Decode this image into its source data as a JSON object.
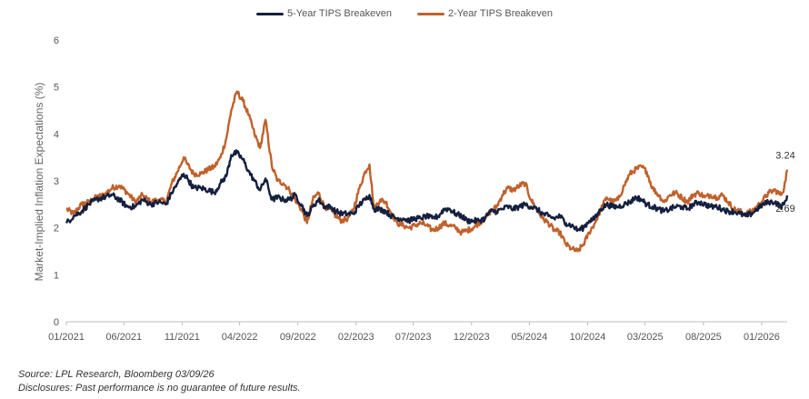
{
  "chart_data": {
    "type": "line",
    "ylabel": "Market-Implied Inflation Expectations (%)",
    "ylim": [
      0,
      6
    ],
    "yticks": [
      "0",
      "1",
      "2",
      "3",
      "4",
      "5",
      "6"
    ],
    "xlim": [
      "2021-01-01",
      "2026-03-09"
    ],
    "xticks": [
      {
        "date": "2021-01-01",
        "label": "01/2021"
      },
      {
        "date": "2021-06-01",
        "label": "06/2021"
      },
      {
        "date": "2021-11-01",
        "label": "11/2021"
      },
      {
        "date": "2022-04-01",
        "label": "04/2022"
      },
      {
        "date": "2022-09-01",
        "label": "09/2022"
      },
      {
        "date": "2023-02-01",
        "label": "02/2023"
      },
      {
        "date": "2023-07-01",
        "label": "07/2023"
      },
      {
        "date": "2023-12-01",
        "label": "12/2023"
      },
      {
        "date": "2024-05-01",
        "label": "05/2024"
      },
      {
        "date": "2024-10-01",
        "label": "10/2024"
      },
      {
        "date": "2025-03-01",
        "label": "03/2025"
      },
      {
        "date": "2025-08-01",
        "label": "08/2025"
      },
      {
        "date": "2026-01-01",
        "label": "01/2026"
      }
    ],
    "grid": false,
    "legend_position": "top-center",
    "series": [
      {
        "name": "5-Year TIPS Breakeven",
        "color": "#15203f",
        "end_label": "2.69",
        "points": [
          [
            "2021-01-01",
            2.1
          ],
          [
            "2021-01-20",
            2.25
          ],
          [
            "2021-02-10",
            2.35
          ],
          [
            "2021-03-01",
            2.5
          ],
          [
            "2021-03-20",
            2.6
          ],
          [
            "2021-04-10",
            2.65
          ],
          [
            "2021-05-01",
            2.7
          ],
          [
            "2021-05-20",
            2.6
          ],
          [
            "2021-06-10",
            2.45
          ],
          [
            "2021-07-01",
            2.45
          ],
          [
            "2021-07-20",
            2.6
          ],
          [
            "2021-08-10",
            2.5
          ],
          [
            "2021-09-01",
            2.55
          ],
          [
            "2021-09-20",
            2.5
          ],
          [
            "2021-10-05",
            2.75
          ],
          [
            "2021-10-20",
            2.95
          ],
          [
            "2021-11-05",
            3.15
          ],
          [
            "2021-11-15",
            3.05
          ],
          [
            "2021-12-01",
            2.85
          ],
          [
            "2021-12-20",
            2.85
          ],
          [
            "2022-01-10",
            2.8
          ],
          [
            "2022-01-25",
            2.75
          ],
          [
            "2022-02-10",
            2.95
          ],
          [
            "2022-02-25",
            3.1
          ],
          [
            "2022-03-10",
            3.55
          ],
          [
            "2022-03-25",
            3.6
          ],
          [
            "2022-04-10",
            3.45
          ],
          [
            "2022-04-25",
            3.2
          ],
          [
            "2022-05-10",
            3.0
          ],
          [
            "2022-05-25",
            2.8
          ],
          [
            "2022-06-08",
            3.05
          ],
          [
            "2022-06-25",
            2.6
          ],
          [
            "2022-07-10",
            2.65
          ],
          [
            "2022-07-25",
            2.6
          ],
          [
            "2022-08-10",
            2.6
          ],
          [
            "2022-08-25",
            2.7
          ],
          [
            "2022-09-10",
            2.5
          ],
          [
            "2022-09-25",
            2.25
          ],
          [
            "2022-10-10",
            2.45
          ],
          [
            "2022-10-25",
            2.6
          ],
          [
            "2022-11-10",
            2.45
          ],
          [
            "2022-11-25",
            2.45
          ],
          [
            "2022-12-10",
            2.35
          ],
          [
            "2022-12-25",
            2.3
          ],
          [
            "2023-01-10",
            2.3
          ],
          [
            "2023-01-25",
            2.3
          ],
          [
            "2023-02-10",
            2.5
          ],
          [
            "2023-02-25",
            2.6
          ],
          [
            "2023-03-08",
            2.7
          ],
          [
            "2023-03-20",
            2.4
          ],
          [
            "2023-04-05",
            2.4
          ],
          [
            "2023-04-20",
            2.35
          ],
          [
            "2023-05-05",
            2.25
          ],
          [
            "2023-05-20",
            2.2
          ],
          [
            "2023-06-05",
            2.2
          ],
          [
            "2023-06-20",
            2.15
          ],
          [
            "2023-07-05",
            2.2
          ],
          [
            "2023-07-20",
            2.2
          ],
          [
            "2023-08-05",
            2.25
          ],
          [
            "2023-08-20",
            2.2
          ],
          [
            "2023-09-05",
            2.25
          ],
          [
            "2023-09-20",
            2.4
          ],
          [
            "2023-10-05",
            2.4
          ],
          [
            "2023-10-20",
            2.3
          ],
          [
            "2023-11-05",
            2.25
          ],
          [
            "2023-11-20",
            2.15
          ],
          [
            "2023-12-05",
            2.15
          ],
          [
            "2023-12-20",
            2.15
          ],
          [
            "2024-01-05",
            2.2
          ],
          [
            "2024-01-20",
            2.35
          ],
          [
            "2024-02-05",
            2.35
          ],
          [
            "2024-02-20",
            2.4
          ],
          [
            "2024-03-05",
            2.45
          ],
          [
            "2024-03-20",
            2.4
          ],
          [
            "2024-04-05",
            2.45
          ],
          [
            "2024-04-20",
            2.5
          ],
          [
            "2024-05-05",
            2.45
          ],
          [
            "2024-05-20",
            2.4
          ],
          [
            "2024-06-05",
            2.3
          ],
          [
            "2024-06-20",
            2.25
          ],
          [
            "2024-07-05",
            2.2
          ],
          [
            "2024-07-20",
            2.25
          ],
          [
            "2024-08-05",
            2.1
          ],
          [
            "2024-08-20",
            2.05
          ],
          [
            "2024-09-05",
            1.95
          ],
          [
            "2024-09-20",
            2.0
          ],
          [
            "2024-10-05",
            2.15
          ],
          [
            "2024-10-20",
            2.2
          ],
          [
            "2024-11-05",
            2.4
          ],
          [
            "2024-11-20",
            2.5
          ],
          [
            "2024-12-05",
            2.45
          ],
          [
            "2024-12-20",
            2.45
          ],
          [
            "2025-01-05",
            2.5
          ],
          [
            "2025-01-20",
            2.55
          ],
          [
            "2025-02-05",
            2.65
          ],
          [
            "2025-02-20",
            2.6
          ],
          [
            "2025-03-05",
            2.5
          ],
          [
            "2025-03-20",
            2.45
          ],
          [
            "2025-04-05",
            2.4
          ],
          [
            "2025-04-20",
            2.35
          ],
          [
            "2025-05-05",
            2.4
          ],
          [
            "2025-05-20",
            2.45
          ],
          [
            "2025-06-05",
            2.45
          ],
          [
            "2025-06-20",
            2.4
          ],
          [
            "2025-07-05",
            2.5
          ],
          [
            "2025-07-20",
            2.55
          ],
          [
            "2025-08-05",
            2.5
          ],
          [
            "2025-08-20",
            2.45
          ],
          [
            "2025-09-05",
            2.45
          ],
          [
            "2025-09-20",
            2.4
          ],
          [
            "2025-10-05",
            2.35
          ],
          [
            "2025-10-20",
            2.35
          ],
          [
            "2025-11-05",
            2.3
          ],
          [
            "2025-11-20",
            2.25
          ],
          [
            "2025-12-05",
            2.3
          ],
          [
            "2025-12-20",
            2.4
          ],
          [
            "2026-01-05",
            2.5
          ],
          [
            "2026-01-20",
            2.55
          ],
          [
            "2026-02-05",
            2.55
          ],
          [
            "2026-02-20",
            2.45
          ],
          [
            "2026-03-01",
            2.5
          ],
          [
            "2026-03-09",
            2.69
          ]
        ]
      },
      {
        "name": "2-Year TIPS Breakeven",
        "color": "#c0612b",
        "end_label": "3.24",
        "points": [
          [
            "2021-01-01",
            2.4
          ],
          [
            "2021-01-20",
            2.3
          ],
          [
            "2021-02-10",
            2.5
          ],
          [
            "2021-03-01",
            2.55
          ],
          [
            "2021-03-20",
            2.65
          ],
          [
            "2021-04-10",
            2.7
          ],
          [
            "2021-05-01",
            2.85
          ],
          [
            "2021-05-20",
            2.9
          ],
          [
            "2021-06-10",
            2.75
          ],
          [
            "2021-07-01",
            2.55
          ],
          [
            "2021-07-20",
            2.7
          ],
          [
            "2021-08-10",
            2.55
          ],
          [
            "2021-09-01",
            2.6
          ],
          [
            "2021-09-20",
            2.55
          ],
          [
            "2021-10-05",
            2.95
          ],
          [
            "2021-10-20",
            3.2
          ],
          [
            "2021-11-05",
            3.5
          ],
          [
            "2021-11-15",
            3.35
          ],
          [
            "2021-12-01",
            3.15
          ],
          [
            "2021-12-20",
            3.15
          ],
          [
            "2022-01-10",
            3.25
          ],
          [
            "2022-01-25",
            3.3
          ],
          [
            "2022-02-10",
            3.5
          ],
          [
            "2022-02-25",
            3.9
          ],
          [
            "2022-03-10",
            4.5
          ],
          [
            "2022-03-25",
            4.9
          ],
          [
            "2022-04-10",
            4.7
          ],
          [
            "2022-04-25",
            4.4
          ],
          [
            "2022-05-10",
            4.0
          ],
          [
            "2022-05-25",
            3.7
          ],
          [
            "2022-06-08",
            4.3
          ],
          [
            "2022-06-25",
            3.3
          ],
          [
            "2022-07-10",
            3.0
          ],
          [
            "2022-07-25",
            2.95
          ],
          [
            "2022-08-10",
            2.8
          ],
          [
            "2022-08-25",
            2.6
          ],
          [
            "2022-09-10",
            2.4
          ],
          [
            "2022-09-25",
            2.1
          ],
          [
            "2022-10-10",
            2.6
          ],
          [
            "2022-10-25",
            2.75
          ],
          [
            "2022-11-10",
            2.45
          ],
          [
            "2022-11-25",
            2.4
          ],
          [
            "2022-12-10",
            2.25
          ],
          [
            "2022-12-25",
            2.15
          ],
          [
            "2023-01-10",
            2.2
          ],
          [
            "2023-01-25",
            2.4
          ],
          [
            "2023-02-10",
            2.85
          ],
          [
            "2023-02-25",
            3.2
          ],
          [
            "2023-03-08",
            3.35
          ],
          [
            "2023-03-20",
            2.4
          ],
          [
            "2023-04-05",
            2.6
          ],
          [
            "2023-04-20",
            2.55
          ],
          [
            "2023-05-05",
            2.3
          ],
          [
            "2023-05-20",
            2.1
          ],
          [
            "2023-06-05",
            2.05
          ],
          [
            "2023-06-20",
            2.0
          ],
          [
            "2023-07-05",
            2.05
          ],
          [
            "2023-07-20",
            2.1
          ],
          [
            "2023-08-05",
            2.05
          ],
          [
            "2023-08-20",
            1.95
          ],
          [
            "2023-09-05",
            2.0
          ],
          [
            "2023-09-20",
            2.1
          ],
          [
            "2023-10-05",
            2.05
          ],
          [
            "2023-10-20",
            2.0
          ],
          [
            "2023-11-05",
            1.9
          ],
          [
            "2023-11-20",
            1.95
          ],
          [
            "2023-12-05",
            2.0
          ],
          [
            "2023-12-20",
            2.1
          ],
          [
            "2024-01-05",
            2.2
          ],
          [
            "2024-01-20",
            2.35
          ],
          [
            "2024-02-05",
            2.45
          ],
          [
            "2024-02-20",
            2.7
          ],
          [
            "2024-03-05",
            2.85
          ],
          [
            "2024-03-20",
            2.8
          ],
          [
            "2024-04-05",
            2.9
          ],
          [
            "2024-04-20",
            2.95
          ],
          [
            "2024-05-05",
            2.6
          ],
          [
            "2024-05-20",
            2.4
          ],
          [
            "2024-06-05",
            2.2
          ],
          [
            "2024-06-20",
            2.1
          ],
          [
            "2024-07-05",
            1.95
          ],
          [
            "2024-07-20",
            1.9
          ],
          [
            "2024-08-05",
            1.65
          ],
          [
            "2024-08-20",
            1.55
          ],
          [
            "2024-09-05",
            1.5
          ],
          [
            "2024-09-20",
            1.65
          ],
          [
            "2024-10-05",
            1.9
          ],
          [
            "2024-10-20",
            2.1
          ],
          [
            "2024-11-05",
            2.4
          ],
          [
            "2024-11-20",
            2.65
          ],
          [
            "2024-12-05",
            2.55
          ],
          [
            "2024-12-20",
            2.6
          ],
          [
            "2025-01-05",
            2.9
          ],
          [
            "2025-01-20",
            3.15
          ],
          [
            "2025-02-05",
            3.25
          ],
          [
            "2025-02-20",
            3.3
          ],
          [
            "2025-03-05",
            3.2
          ],
          [
            "2025-03-20",
            2.85
          ],
          [
            "2025-04-05",
            2.7
          ],
          [
            "2025-04-20",
            2.55
          ],
          [
            "2025-05-05",
            2.7
          ],
          [
            "2025-05-20",
            2.75
          ],
          [
            "2025-06-05",
            2.65
          ],
          [
            "2025-06-20",
            2.55
          ],
          [
            "2025-07-05",
            2.7
          ],
          [
            "2025-07-20",
            2.75
          ],
          [
            "2025-08-05",
            2.65
          ],
          [
            "2025-08-20",
            2.7
          ],
          [
            "2025-09-05",
            2.65
          ],
          [
            "2025-09-20",
            2.7
          ],
          [
            "2025-10-05",
            2.55
          ],
          [
            "2025-10-20",
            2.4
          ],
          [
            "2025-11-05",
            2.35
          ],
          [
            "2025-11-20",
            2.3
          ],
          [
            "2025-12-05",
            2.35
          ],
          [
            "2025-12-20",
            2.45
          ],
          [
            "2026-01-05",
            2.6
          ],
          [
            "2026-01-20",
            2.75
          ],
          [
            "2026-02-05",
            2.8
          ],
          [
            "2026-02-20",
            2.7
          ],
          [
            "2026-03-01",
            2.85
          ],
          [
            "2026-03-09",
            3.24
          ]
        ]
      }
    ]
  },
  "footnotes": {
    "source": "Source: LPL Research, Bloomberg 03/09/26",
    "disclosure": "Disclosures: Past performance is no guarantee of future results."
  }
}
